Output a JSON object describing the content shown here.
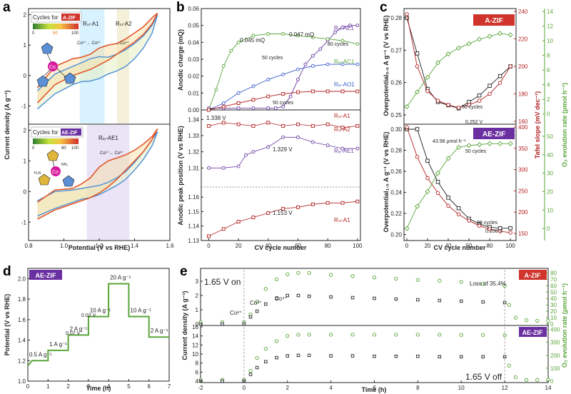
{
  "panel_labels": [
    "a",
    "b",
    "c",
    "d",
    "e"
  ],
  "colors": {
    "black": "#222222",
    "red": "#b22222",
    "green": "#5aa53a",
    "blue": "#3a5cc9",
    "purple": "#6a3aa0",
    "zif_red": "#d0342c",
    "aezif_purple": "#6a2fa0",
    "band_blue": "#cfefff",
    "band_tan": "#f3ecd0",
    "band_purple": "#e6dcf4"
  },
  "chart_data": [
    {
      "id": "a",
      "type": "line",
      "title": "",
      "xlabel": "Potential (V vs RHE)",
      "ylabel": "Current density (A g⁻¹)",
      "xlim": [
        0.8,
        1.6
      ],
      "xticks": [
        "0.8",
        "1.0",
        "1.2",
        "1.4",
        "1.6"
      ],
      "top": {
        "legend_title": "Cycles for",
        "badge": "A-ZIF",
        "colorbar_ticks": [
          "0",
          "50",
          "100"
        ],
        "ylim": [
          -1.6,
          2.2
        ],
        "yticks": [
          "-1",
          "0",
          "1",
          "2"
        ],
        "region_labels": [
          "Rₛₗ-A1",
          "Rₛₗ-A2"
        ],
        "annotations": [
          "Co²⁺→ Co³⁺",
          "→Co⁴⁺"
        ],
        "bands": [
          [
            1.09,
            1.23
          ],
          [
            1.3,
            1.37
          ]
        ],
        "x": [
          0.85,
          0.95,
          1.05,
          1.1,
          1.15,
          1.2,
          1.25,
          1.3,
          1.35,
          1.4,
          1.45,
          1.5,
          1.53
        ],
        "series": [
          {
            "name": "cycle 1",
            "forward": [
              -0.5,
              0.05,
              0.3,
              0.42,
              0.55,
              0.62,
              0.6,
              0.7,
              0.85,
              1.05,
              1.3,
              1.65,
              2.0
            ],
            "reverse": [
              -1.1,
              -0.6,
              -0.3,
              -0.2,
              -0.18,
              -0.1,
              0.05,
              0.15,
              0.3,
              0.55,
              0.9,
              1.4,
              2.0
            ]
          },
          {
            "name": "cycle 100",
            "forward": [
              -0.4,
              0.3,
              0.55,
              0.6,
              0.7,
              0.9,
              1.0,
              1.05,
              1.2,
              1.4,
              1.6,
              1.9,
              2.05
            ],
            "reverse": [
              -0.9,
              -0.3,
              0.0,
              0.1,
              0.2,
              0.35,
              0.5,
              0.7,
              0.9,
              1.1,
              1.35,
              1.7,
              2.05
            ]
          }
        ]
      },
      "bottom": {
        "legend_title": "Cycles for",
        "badge": "AE-ZIF",
        "colorbar_ticks": [
          "0",
          "80",
          "100"
        ],
        "ylim": [
          -1.6,
          2.2
        ],
        "yticks": [
          "-1",
          "0",
          "1",
          "2"
        ],
        "region_labels": [
          "Rₗₑ-AE1"
        ],
        "annotations": [
          "Co²⁺→ Co³⁺"
        ],
        "bands": [
          [
            1.13,
            1.37
          ]
        ],
        "x": [
          0.85,
          0.95,
          1.05,
          1.1,
          1.15,
          1.2,
          1.25,
          1.3,
          1.35,
          1.4,
          1.45,
          1.5,
          1.53
        ],
        "series": [
          {
            "name": "cycle 1",
            "forward": [
              -0.3,
              0.0,
              0.05,
              0.1,
              0.15,
              0.2,
              0.3,
              0.45,
              0.65,
              0.95,
              1.3,
              1.7,
              1.95
            ],
            "reverse": [
              -0.8,
              -0.55,
              -0.35,
              -0.25,
              -0.2,
              -0.1,
              0.05,
              0.2,
              0.4,
              0.7,
              1.05,
              1.5,
              1.95
            ]
          },
          {
            "name": "cycle 100",
            "forward": [
              -0.35,
              0.05,
              0.1,
              0.25,
              0.45,
              0.8,
              1.0,
              1.1,
              1.2,
              1.35,
              1.55,
              1.8,
              2.05
            ],
            "reverse": [
              -0.9,
              -0.6,
              -0.4,
              -0.3,
              -0.2,
              -0.05,
              0.15,
              0.4,
              0.7,
              1.0,
              1.3,
              1.7,
              2.05
            ]
          }
        ]
      }
    },
    {
      "id": "b",
      "type": "scatter",
      "xlabel": "CV cycle number",
      "xlim": [
        -5,
        102
      ],
      "xticks": [
        "0",
        "20",
        "40",
        "60",
        "80",
        "100"
      ],
      "top": {
        "ylabel": "Anodic charge (mQ)",
        "ylim": [
          0,
          0.06
        ],
        "yticks": [
          "0.00",
          "0.01",
          "0.02",
          "0.03",
          "0.04",
          "0.05",
          "0.06"
        ],
        "annotations": [
          "0.045 mQ",
          "0.047 mQ",
          "50 cycles",
          "80 cycles",
          "50 cycles"
        ],
        "series": [
          {
            "name": "Rₗₑ-AE1",
            "color": "#6a3aa0",
            "marker": "circle",
            "x": [
              0,
              10,
              20,
              30,
              40,
              45,
              50,
              55,
              60,
              65,
              70,
              75,
              80,
              85,
              90,
              95,
              100
            ],
            "y": [
              0.001,
              0.001,
              0.001,
              0.001,
              0.001,
              0.001,
              0.002,
              0.008,
              0.018,
              0.027,
              0.032,
              0.036,
              0.041,
              0.046,
              0.049,
              0.05,
              0.05
            ]
          },
          {
            "name": "Rₗₑ-AC1",
            "color": "#5aa53a",
            "marker": "circle",
            "x": [
              0,
              5,
              10,
              15,
              20,
              30,
              40,
              50,
              60,
              70,
              80,
              90,
              100
            ],
            "y": [
              0.0,
              0.012,
              0.026,
              0.035,
              0.04,
              0.044,
              0.045,
              0.045,
              0.044,
              0.043,
              0.042,
              0.041,
              0.039
            ]
          },
          {
            "name": "Rₗₑ-AO1",
            "color": "#3a5cc9",
            "marker": "circle",
            "x": [
              0,
              10,
              20,
              30,
              40,
              50,
              60,
              70,
              80,
              90,
              100
            ],
            "y": [
              0.0,
              0.004,
              0.01,
              0.014,
              0.018,
              0.021,
              0.024,
              0.026,
              0.027,
              0.027,
              0.027
            ]
          },
          {
            "name": "Rₛₗ-A1",
            "color": "#b22222",
            "marker": "square",
            "x": [
              0,
              10,
              20,
              30,
              40,
              50,
              60,
              70,
              80,
              90,
              100
            ],
            "y": [
              0.0,
              0.002,
              0.004,
              0.006,
              0.008,
              0.0095,
              0.0105,
              0.011,
              0.011,
              0.011,
              0.011
            ]
          }
        ]
      },
      "bottom": {
        "ylabel": "Anodic peak position (V vs RHE)",
        "yticks_top": [
          "1.31",
          "1.32",
          "1.33",
          "1.34"
        ],
        "yticks_bottom": [
          "1.13",
          "1.14",
          "1.15",
          "1.16"
        ],
        "ylim_top": [
          1.3,
          1.345
        ],
        "ylim_bottom": [
          1.13,
          1.165
        ],
        "annotations": [
          "1.338 V",
          "1.329 V",
          "1.153 V"
        ],
        "series": [
          {
            "name": "Rₛₗ-A2",
            "color": "#b22222",
            "marker": "square",
            "axis": "top",
            "x": [
              0,
              10,
              20,
              30,
              40,
              50,
              60,
              70,
              80,
              90,
              100
            ],
            "y": [
              1.336,
              1.338,
              1.337,
              1.336,
              1.338,
              1.336,
              1.337,
              1.336,
              1.337,
              1.335,
              1.336
            ]
          },
          {
            "name": "Rₗₑ-AE1",
            "color": "#6a3aa0",
            "marker": "circle",
            "axis": "top",
            "x": [
              0,
              10,
              20,
              25,
              30,
              40,
              50,
              60,
              70,
              80,
              90,
              100
            ],
            "y": [
              1.31,
              1.31,
              1.311,
              1.318,
              1.32,
              1.323,
              1.329,
              1.329,
              1.326,
              1.324,
              1.322,
              1.322
            ]
          },
          {
            "name": "Rₛₗ-A1",
            "color": "#b22222",
            "marker": "square",
            "axis": "bottom",
            "x": [
              0,
              10,
              20,
              30,
              40,
              50,
              60,
              70,
              80,
              90,
              100
            ],
            "y": [
              1.133,
              1.138,
              1.143,
              1.146,
              1.149,
              1.152,
              1.153,
              1.155,
              1.156,
              1.156,
              1.157
            ]
          }
        ]
      }
    },
    {
      "id": "c",
      "type": "line",
      "xlabel": "CV cycle number",
      "xlim": [
        0,
        102
      ],
      "xticks": [
        "0",
        "20",
        "40",
        "60",
        "80",
        "100"
      ],
      "right_ylabel_green": "O₂ evolution rate (μmol h⁻¹)",
      "right_ylabel_red": "Tafel slope (mV dec⁻¹)",
      "top": {
        "badge": "A-ZIF",
        "ylabel": "Overpotential₀.₅ A g⁻¹ (V vs RHE)",
        "ylim": [
          0.248,
          0.282
        ],
        "yticks": [
          "0.25",
          "0.26",
          "0.27",
          "0.28"
        ],
        "tafel_ylim": [
          160,
          240
        ],
        "tafel_yticks": [
          "160",
          "180",
          "200",
          "220",
          "240"
        ],
        "o2_ylim": [
          -1,
          14
        ],
        "o2_yticks": [
          "0",
          "2",
          "4",
          "6",
          "8",
          "10",
          "12",
          "14"
        ],
        "annotations": [
          "50 cycles",
          "0.252 V"
        ],
        "x": [
          0,
          10,
          20,
          30,
          40,
          50,
          60,
          70,
          80,
          90,
          100
        ],
        "overpotential": [
          0.28,
          0.269,
          0.258,
          0.254,
          0.253,
          0.252,
          0.254,
          0.256,
          0.259,
          0.262,
          0.265
        ],
        "tafel": [
          238,
          200,
          182,
          175,
          172,
          170,
          172,
          175,
          180,
          188,
          200
        ],
        "o2": [
          1,
          3,
          5,
          7,
          8.2,
          9,
          9.6,
          10.2,
          10.6,
          11,
          10.8
        ]
      },
      "bottom": {
        "badge": "AE-ZIF",
        "ylabel": "Overpotential₁.₅ A g⁻¹ (V vs RHE)",
        "ylim": [
          0.197,
          0.302
        ],
        "yticks": [
          "0.20",
          "0.22",
          "0.24",
          "0.26",
          "0.28",
          "0.30"
        ],
        "tafel_ylim": [
          140,
          400
        ],
        "tafel_yticks": [
          "150",
          "200",
          "250",
          "300",
          "350",
          "400"
        ],
        "o2_ylim": [
          -5,
          55
        ],
        "o2_yticks": [
          "0",
          "10",
          "20",
          "30",
          "40",
          "50"
        ],
        "annotations": [
          "43.98 μmol h⁻¹",
          "50 cycles",
          "80 cycles",
          "0.206 V"
        ],
        "x": [
          0,
          10,
          20,
          30,
          40,
          50,
          60,
          70,
          80,
          90,
          100
        ],
        "overpotential": [
          0.3,
          0.3,
          0.27,
          0.25,
          0.235,
          0.225,
          0.215,
          0.21,
          0.207,
          0.206,
          0.206
        ],
        "tafel": [
          400,
          330,
          280,
          245,
          215,
          195,
          180,
          168,
          160,
          155,
          152
        ],
        "o2": [
          0,
          12,
          20,
          30,
          38,
          44,
          45,
          45.5,
          46,
          46,
          46
        ]
      }
    },
    {
      "id": "d",
      "type": "line",
      "badge": "AE-ZIF",
      "xlabel": "Time (h)",
      "ylabel": "Potential (V vs RHE)",
      "xlim": [
        0,
        7
      ],
      "ylim": [
        1.0,
        2.1
      ],
      "xticks": [
        "0",
        "1",
        "2",
        "3",
        "4",
        "5",
        "6",
        "7"
      ],
      "yticks": [
        "1.0",
        "1.2",
        "1.4",
        "1.6",
        "1.8",
        "2.0"
      ],
      "annotations": [
        "0.07 V",
        "0.02 V"
      ],
      "steps": [
        {
          "label": "0.5 A g⁻¹",
          "t0": 0,
          "t1": 1,
          "v": 1.2
        },
        {
          "label": "1 A g⁻¹",
          "t0": 1,
          "t1": 2,
          "v": 1.3
        },
        {
          "label": "2 A g⁻¹",
          "t0": 2,
          "t1": 3,
          "v": 1.45
        },
        {
          "label": "10 A g⁻¹",
          "t0": 3,
          "t1": 4,
          "v": 1.63
        },
        {
          "label": "20 A g⁻¹",
          "t0": 4,
          "t1": 5,
          "v": 1.95
        },
        {
          "label": "10 A g⁻¹",
          "t0": 5,
          "t1": 6,
          "v": 1.63
        },
        {
          "label": "2 A g⁻¹",
          "t0": 6,
          "t1": 7,
          "v": 1.43
        }
      ]
    },
    {
      "id": "e",
      "type": "scatter",
      "xlabel": "Time (h)",
      "ylabel": "Current density (A g⁻¹)",
      "right_ylabel": "O₂ evolution rate (μmol h⁻¹)",
      "xlim": [
        -2,
        14
      ],
      "xticks": [
        "-2",
        "0",
        "2",
        "4",
        "6",
        "8",
        "10",
        "12",
        "14"
      ],
      "annotations": [
        "1.65 V on",
        "1.65 V off",
        "Loss of 35.4%",
        "Co³⁺",
        "Co⁴⁺",
        "Co²⁺"
      ],
      "top": {
        "badge": "A-ZIF",
        "ylim": [
          0,
          3.8
        ],
        "yticks": [
          "0",
          "1",
          "2",
          "3"
        ],
        "o2_ylim": [
          0,
          85
        ],
        "o2_yticks": [
          "0",
          "10",
          "20",
          "30",
          "40",
          "50",
          "60",
          "70",
          "80"
        ],
        "x": [
          -2,
          -1,
          0,
          0.3,
          0.6,
          1,
          1.5,
          2,
          2.5,
          3,
          4,
          5,
          6,
          7,
          8,
          9,
          10,
          11,
          12,
          12.2,
          12.5,
          13,
          13.5,
          14
        ],
        "current": [
          0,
          0,
          0,
          0.5,
          0.9,
          1.4,
          1.8,
          2.0,
          2.0,
          1.95,
          1.9,
          1.85,
          1.8,
          1.75,
          1.7,
          1.65,
          1.6,
          1.55,
          1.5,
          null,
          null,
          null,
          null,
          null
        ],
        "o2": [
          3,
          3,
          3,
          15,
          35,
          55,
          70,
          78,
          80,
          80,
          77,
          75,
          73,
          71,
          69,
          68,
          66,
          63,
          60,
          30,
          10,
          6,
          5,
          5
        ]
      },
      "bottom": {
        "badge": "AE-ZIF",
        "ylim": [
          4,
          16
        ],
        "yticks": [
          "4",
          "6",
          "8",
          "10",
          "12",
          "14",
          "16"
        ],
        "o2_ylim": [
          0,
          420
        ],
        "o2_yticks": [
          "0",
          "100",
          "200",
          "300",
          "400"
        ],
        "x": [
          -2,
          -1,
          0,
          0.3,
          0.6,
          1,
          1.5,
          2,
          2.5,
          3,
          4,
          5,
          6,
          7,
          8,
          9,
          10,
          11,
          12,
          12.2,
          12.5,
          13,
          13.5,
          14
        ],
        "current": [
          4,
          4,
          4,
          5.5,
          7,
          8.3,
          9.2,
          9.6,
          9.7,
          9.7,
          9.6,
          9.6,
          9.5,
          9.5,
          9.5,
          9.4,
          9.4,
          9.4,
          9.4,
          null,
          null,
          null,
          null,
          null
        ],
        "o2": [
          10,
          10,
          10,
          80,
          180,
          250,
          310,
          350,
          360,
          360,
          360,
          360,
          360,
          360,
          360,
          360,
          358,
          358,
          355,
          120,
          30,
          10,
          10,
          10
        ]
      }
    }
  ]
}
